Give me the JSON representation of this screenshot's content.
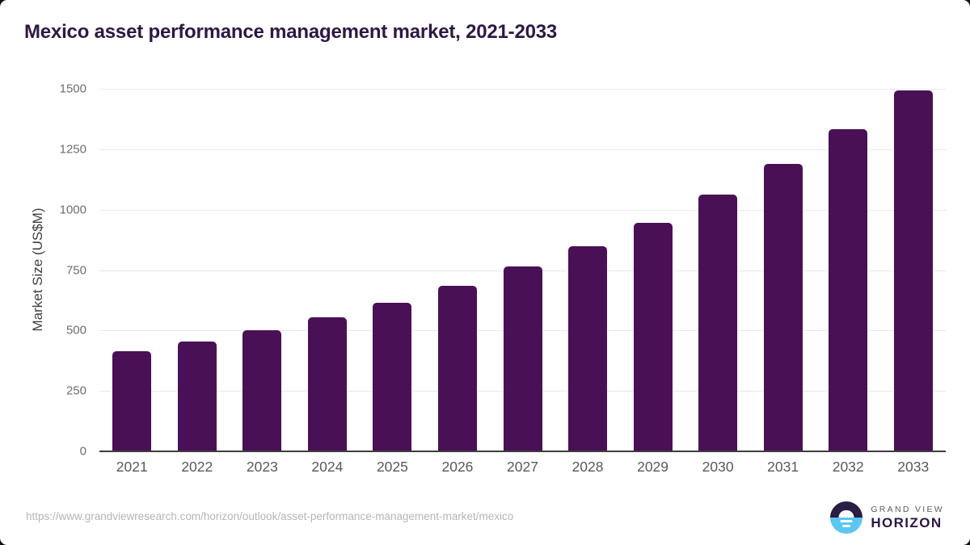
{
  "page": {
    "title": "Mexico asset performance management market, 2021-2033",
    "source_url": "https://www.grandviewresearch.com/horizon/outlook/asset-performance-management-market/mexico"
  },
  "logo": {
    "line1": "GRAND VIEW",
    "line2": "HORIZON"
  },
  "colors": {
    "bar": "#4a1056",
    "title_text": "#2e1745",
    "gridline": "#e8e8ec",
    "axis_line": "#3d3d3d",
    "ytick_text": "#6e6e6e",
    "xtick_text": "#595959",
    "url_text": "#b5b5b5",
    "logo_top_half": "#2a1e44",
    "logo_bottom_half": "#5bc6f2"
  },
  "chart_data": {
    "type": "bar",
    "title": "Mexico asset performance management market, 2021-2033",
    "categories": [
      "2021",
      "2022",
      "2023",
      "2024",
      "2025",
      "2026",
      "2027",
      "2028",
      "2029",
      "2030",
      "2031",
      "2032",
      "2033"
    ],
    "values": [
      413,
      455,
      501,
      554,
      616,
      685,
      764,
      849,
      947,
      1062,
      1189,
      1333,
      1492
    ],
    "xlabel": "",
    "ylabel": "Market Size (US$M)",
    "ylim": [
      0,
      1500
    ],
    "yticks": [
      0,
      250,
      500,
      750,
      1000,
      1250,
      1500
    ],
    "grid": true,
    "legend": false,
    "bar_color": "#4a1056"
  }
}
